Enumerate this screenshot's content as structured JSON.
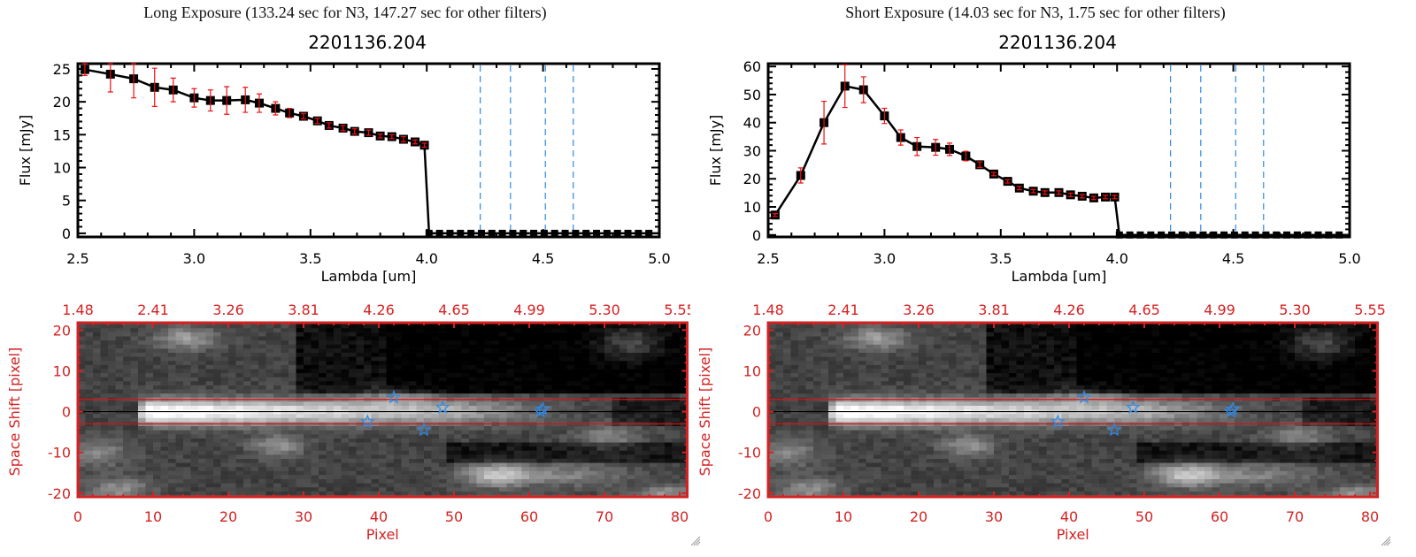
{
  "panels": [
    {
      "title": "Long Exposure (133.24 sec for N3, 147.27 sec for other filters)",
      "object_id": "2201136.204"
    },
    {
      "title": "Short Exposure (14.03 sec for N3, 1.75 sec for other filters)",
      "object_id": "2201136.204"
    }
  ],
  "colors": {
    "data_line": "#000000",
    "error_bar": "#ee1111",
    "filter_line": "#2e8ae6",
    "image_axis": "#d42222",
    "star": "#2e8ae6"
  },
  "chart_data": [
    {
      "type": "line",
      "title": "2201136.204",
      "xlabel": "Lambda [um]",
      "ylabel": "Flux [mJy]",
      "xlim": [
        2.5,
        5.0
      ],
      "ylim": [
        -0.55,
        25.8
      ],
      "xticks": [
        "2.5",
        "3.0",
        "3.5",
        "4.0",
        "4.5",
        "5.0"
      ],
      "yticks": [
        "0",
        "5",
        "10",
        "15",
        "20",
        "25"
      ],
      "ytick_values": [
        0,
        5,
        10,
        15,
        20,
        25
      ],
      "x": [
        2.53,
        2.64,
        2.74,
        2.83,
        2.91,
        3.0,
        3.07,
        3.14,
        3.22,
        3.28,
        3.35,
        3.41,
        3.47,
        3.53,
        3.58,
        3.64,
        3.69,
        3.75,
        3.8,
        3.85,
        3.9,
        3.95,
        3.99
      ],
      "y": [
        24.9,
        24.2,
        23.5,
        22.2,
        21.8,
        20.6,
        20.2,
        20.2,
        20.3,
        19.8,
        19.0,
        18.3,
        17.8,
        17.1,
        16.4,
        16.0,
        15.5,
        15.3,
        14.8,
        14.7,
        14.3,
        13.9,
        13.4
      ],
      "yerr": [
        0.9,
        2.7,
        2.9,
        2.9,
        1.8,
        1.4,
        1.6,
        2.1,
        1.9,
        1.4,
        1.0,
        0.7,
        0.4,
        0.4,
        0.4,
        0.4,
        0.4,
        0.4,
        0.3,
        0.3,
        0.4,
        0.3,
        0.3
      ],
      "zero_x": [
        4.01,
        4.055,
        4.1,
        4.145,
        4.19,
        4.235,
        4.28,
        4.325,
        4.37,
        4.415,
        4.46,
        4.505,
        4.55,
        4.595,
        4.64,
        4.685,
        4.73,
        4.775,
        4.82,
        4.865,
        4.91,
        4.955
      ],
      "filter_lines": [
        4.23,
        4.36,
        4.51,
        4.63
      ]
    },
    {
      "type": "line",
      "title": "2201136.204",
      "xlabel": "Lambda [um]",
      "ylabel": "Flux [mJy]",
      "xlim": [
        2.5,
        5.0
      ],
      "ylim": [
        -0.7,
        61
      ],
      "xticks": [
        "2.5",
        "3.0",
        "3.5",
        "4.0",
        "4.5",
        "5.0"
      ],
      "yticks": [
        "0",
        "10",
        "20",
        "30",
        "40",
        "50",
        "60"
      ],
      "ytick_values": [
        0,
        10,
        20,
        30,
        40,
        50,
        60
      ],
      "x": [
        2.53,
        2.64,
        2.74,
        2.83,
        2.91,
        3.0,
        3.07,
        3.14,
        3.22,
        3.28,
        3.35,
        3.41,
        3.47,
        3.53,
        3.58,
        3.64,
        3.69,
        3.75,
        3.8,
        3.85,
        3.9,
        3.95,
        3.99
      ],
      "y": [
        7.1,
        21.2,
        40.0,
        53.0,
        51.7,
        42.4,
        34.7,
        31.5,
        31.2,
        30.5,
        28.1,
        25.0,
        21.7,
        19.1,
        16.7,
        15.6,
        15.1,
        15.1,
        14.3,
        13.8,
        13.2,
        13.5,
        13.5
      ],
      "yerr": [
        0.5,
        2.7,
        7.6,
        7.6,
        4.6,
        2.7,
        2.7,
        3.2,
        2.8,
        2.2,
        1.7,
        1.0,
        0.6,
        0.6,
        0.6,
        0.6,
        0.6,
        0.6,
        0.6,
        0.6,
        0.6,
        0.6,
        0.6
      ],
      "zero_x": [
        4.01,
        4.055,
        4.1,
        4.145,
        4.19,
        4.235,
        4.28,
        4.325,
        4.37,
        4.415,
        4.46,
        4.505,
        4.55,
        4.595,
        4.64,
        4.685,
        4.73,
        4.775,
        4.82,
        4.865,
        4.91,
        4.955
      ],
      "filter_lines": [
        4.23,
        4.36,
        4.51,
        4.63
      ]
    },
    {
      "type": "heatmap",
      "xlabel": "Pixel",
      "ylabel": "Space Shift [pixel]",
      "xlim": [
        0,
        81
      ],
      "ylim": [
        -20.9,
        21.8
      ],
      "xticks": [
        "0",
        "10",
        "20",
        "30",
        "40",
        "50",
        "60",
        "70",
        "80"
      ],
      "top_ticks": [
        "1.48",
        "2.41",
        "3.26",
        "3.81",
        "4.26",
        "4.65",
        "4.99",
        "5.30",
        "5.55"
      ],
      "yticks": [
        "20",
        "10",
        "0",
        "-10",
        "-20"
      ],
      "ytick_values": [
        20,
        10,
        0,
        -10,
        -20
      ],
      "aperture_lines": [
        3,
        -3
      ],
      "center_line": 0,
      "stars": [
        [
          38.5,
          -2.5
        ],
        [
          42,
          3.5
        ],
        [
          46,
          -4.5
        ],
        [
          48.5,
          1
        ],
        [
          61.5,
          0
        ],
        [
          61.8,
          0.6
        ]
      ]
    },
    {
      "type": "heatmap",
      "xlabel": "Pixel",
      "ylabel": "Space Shift [pixel]",
      "xlim": [
        0,
        81
      ],
      "ylim": [
        -20.9,
        21.8
      ],
      "xticks": [
        "0",
        "10",
        "20",
        "30",
        "40",
        "50",
        "60",
        "70",
        "80"
      ],
      "top_ticks": [
        "1.48",
        "2.41",
        "3.26",
        "3.81",
        "4.26",
        "4.65",
        "4.99",
        "5.30",
        "5.55"
      ],
      "yticks": [
        "20",
        "10",
        "0",
        "-10",
        "-20"
      ],
      "ytick_values": [
        20,
        10,
        0,
        -10,
        -20
      ],
      "aperture_lines": [
        3,
        -3
      ],
      "center_line": 0,
      "stars": [
        [
          38.5,
          -2.5
        ],
        [
          42,
          3.5
        ],
        [
          46,
          -4.5
        ],
        [
          48.5,
          1
        ],
        [
          61.5,
          0
        ],
        [
          61.8,
          0.6
        ]
      ]
    }
  ]
}
